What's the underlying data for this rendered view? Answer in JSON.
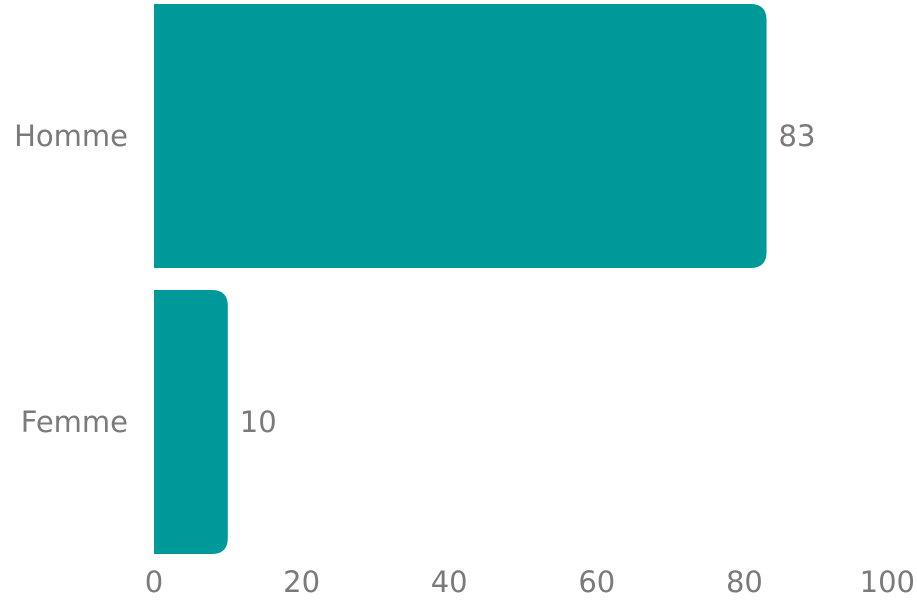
{
  "chart_data": {
    "type": "bar",
    "orientation": "horizontal",
    "categories": [
      "Homme",
      "Femme"
    ],
    "values": [
      83,
      10
    ],
    "value_labels": [
      "83",
      "10"
    ],
    "xlim": [
      0,
      100
    ],
    "xticks": [
      0,
      20,
      40,
      60,
      80,
      100
    ],
    "xtick_labels": [
      "0",
      "20",
      "40",
      "60",
      "80",
      "100"
    ],
    "bar_color": "#009999",
    "text_color": "#7a7a7a",
    "grid": false,
    "legend": "none"
  }
}
